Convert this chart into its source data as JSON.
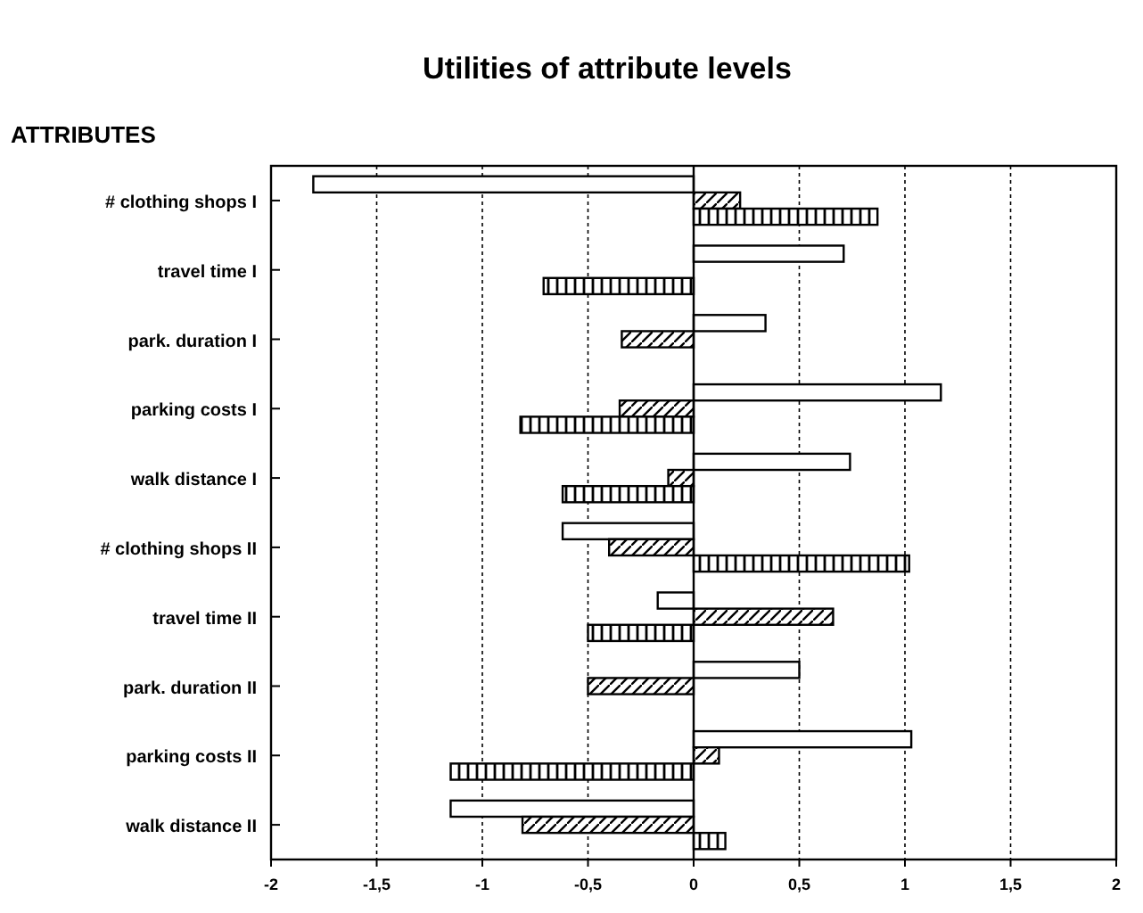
{
  "chart_data": {
    "type": "bar",
    "orientation": "horizontal",
    "title": "Utilities of attribute levels",
    "ylabel": "ATTRIBUTES",
    "categories": [
      "# clothing shops I",
      "travel time I",
      "park. duration I",
      "parking costs I",
      "walk distance I",
      "# clothing shops II",
      "travel time II",
      "park. duration II",
      "parking costs II",
      "walk distance II"
    ],
    "series": [
      {
        "color": "#000000",
        "values": [
          -1.8,
          0.71,
          0.34,
          1.17,
          0.74,
          -0.62,
          -0.17,
          0.5,
          1.03,
          -1.15
        ]
      },
      {
        "color": "#000000",
        "values": [
          0.22,
          null,
          -0.34,
          -0.35,
          -0.12,
          -0.4,
          0.66,
          -0.5,
          0.12,
          -0.81
        ]
      },
      {
        "color": "#000000",
        "values": [
          0.87,
          -0.71,
          null,
          -0.82,
          -0.62,
          1.02,
          -0.5,
          null,
          -1.15,
          0.15
        ]
      }
    ],
    "xlim": [
      -2,
      2
    ],
    "xticks": [
      {
        "value": -2,
        "label": "-2"
      },
      {
        "value": -1.5,
        "label": "-1,5"
      },
      {
        "value": -1,
        "label": "-1"
      },
      {
        "value": -0.5,
        "label": "-0,5"
      },
      {
        "value": 0,
        "label": "0"
      },
      {
        "value": 0.5,
        "label": "0,5"
      },
      {
        "value": 1,
        "label": "1"
      },
      {
        "value": 1.5,
        "label": "1,5"
      },
      {
        "value": 2,
        "label": "2"
      }
    ],
    "grid": "x"
  }
}
